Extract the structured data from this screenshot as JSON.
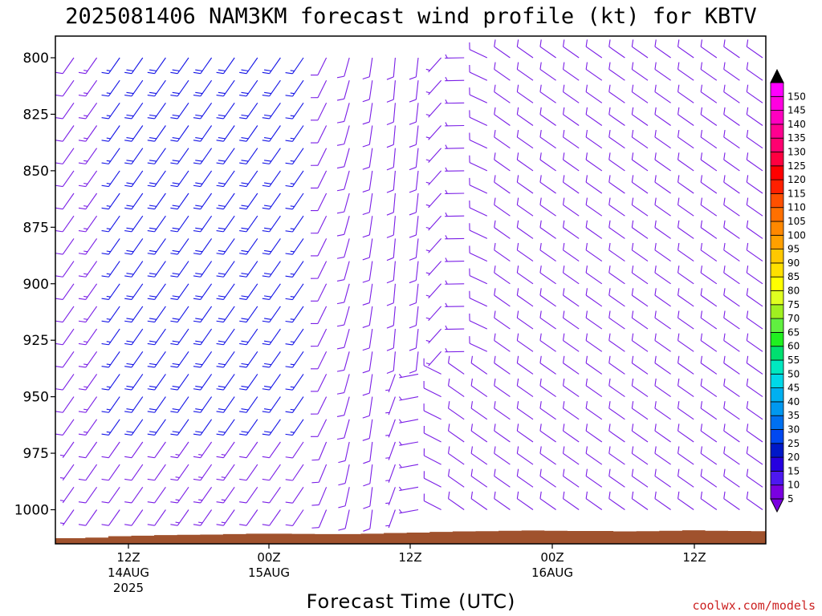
{
  "chart_data": {
    "type": "wind-barb time-height",
    "title": "2025081406 NAM3KM forecast wind profile (kt) for KBTV",
    "xlabel": "Forecast Time (UTC)",
    "credit": "coolwx.com/models",
    "y_axis": {
      "quantity": "pressure (hPa)",
      "range": [
        1013,
        791
      ],
      "ticks": [
        "800",
        "825",
        "850",
        "875",
        "900",
        "925",
        "950",
        "975",
        "1000"
      ]
    },
    "x_axis": {
      "ticks": [
        {
          "label": "12Z",
          "date": "14AUG",
          "year": "2025"
        },
        {
          "label": "00Z",
          "date": "15AUG",
          "year": ""
        },
        {
          "label": "12Z",
          "date": "",
          "year": ""
        },
        {
          "label": "00Z",
          "date": "16AUG",
          "year": ""
        },
        {
          "label": "12Z",
          "date": "",
          "year": ""
        }
      ]
    },
    "colorbar": {
      "unit": "kt",
      "labels": [
        "5",
        "10",
        "15",
        "20",
        "25",
        "30",
        "35",
        "40",
        "45",
        "50",
        "55",
        "60",
        "65",
        "70",
        "75",
        "80",
        "85",
        "90",
        "95",
        "100",
        "105",
        "110",
        "115",
        "120",
        "125",
        "130",
        "135",
        "140",
        "145",
        "150"
      ],
      "colors": [
        "#7a00e0",
        "#4d18f0",
        "#2600e0",
        "#0018c8",
        "#0048f0",
        "#0070f0",
        "#0098f0",
        "#00b0f0",
        "#00d8e8",
        "#00e8c0",
        "#00e070",
        "#20f020",
        "#60f040",
        "#a0f020",
        "#e0ff20",
        "#ffff00",
        "#ffe000",
        "#ffc800",
        "#ffa000",
        "#ff8800",
        "#ff7000",
        "#ff5000",
        "#ff2000",
        "#ff0000",
        "#ff0040",
        "#ff0070",
        "#ff0090",
        "#ff00c0",
        "#ff00e0",
        "#ff00ff"
      ]
    },
    "barb_colors": {
      "light": "#7a1ee6",
      "medium": "#1414e6"
    },
    "terrain": {
      "color": "#a0522d",
      "surface_pressure": [
        1012.6,
        1012.3,
        1011.7,
        1011.5,
        1011.2,
        1011.1,
        1011.0,
        1010.8,
        1010.6,
        1010.6,
        1010.7,
        1010.8,
        1010.8,
        1010.6,
        1010.3,
        1010.1,
        1009.8,
        1009.6,
        1009.5,
        1009.3,
        1009.2,
        1009.3,
        1009.4,
        1009.4,
        1009.6,
        1009.5,
        1009.3,
        1009.1,
        1009.3,
        1009.4,
        1009.5
      ]
    },
    "wind_profile": {
      "levels_hPa": [
        790,
        800,
        810,
        820,
        830,
        840,
        850,
        860,
        870,
        880,
        890,
        900,
        910,
        920,
        930,
        940,
        950,
        960,
        970,
        980,
        990,
        1000
      ],
      "times": 31,
      "regimes": [
        {
          "name": "southwest",
          "direction_deg": 215,
          "speed_kt": 18
        },
        {
          "name": "south",
          "direction_deg": 185,
          "speed_kt": 9
        },
        {
          "name": "northwest",
          "direction_deg": 305,
          "speed_kt": 12
        }
      ]
    }
  }
}
